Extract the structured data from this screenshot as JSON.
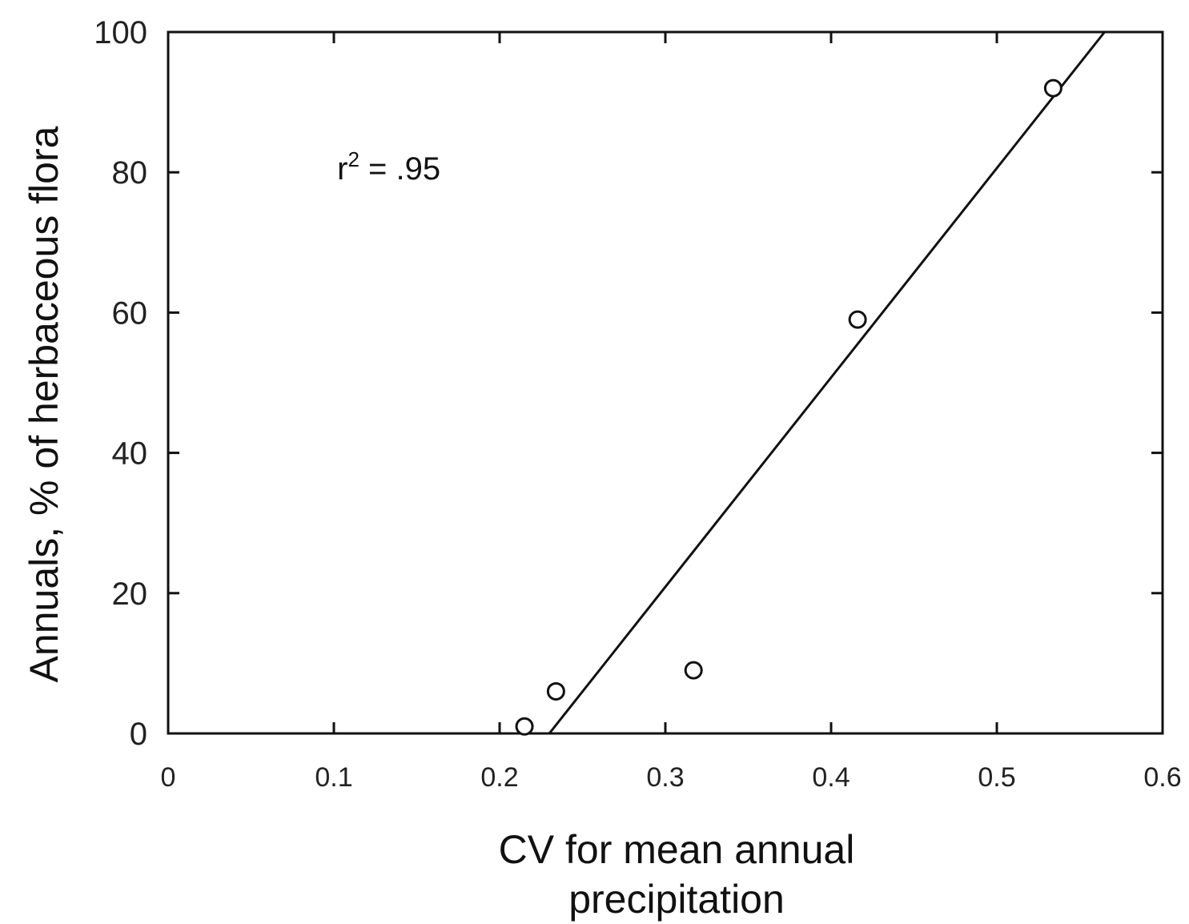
{
  "chart_data": {
    "type": "scatter",
    "title": "",
    "xlabel": "CV for mean annual precipitation",
    "xlabel_lines": [
      "CV for mean annual",
      "precipitation"
    ],
    "ylabel": "Annuals, % of herbaceous flora",
    "xlim": [
      0,
      0.6
    ],
    "ylim": [
      0,
      100
    ],
    "x_ticks": [
      0,
      0.1,
      0.2,
      0.3,
      0.4,
      0.5,
      0.6
    ],
    "x_tick_labels": [
      "0",
      "0.1",
      "0.2",
      "0.3",
      "0.4",
      "0.5",
      "0.6"
    ],
    "y_ticks": [
      0,
      20,
      40,
      60,
      80,
      100
    ],
    "y_tick_labels": [
      "0",
      "20",
      "40",
      "60",
      "80",
      "100"
    ],
    "grid": false,
    "points": [
      {
        "x": 0.215,
        "y": 1
      },
      {
        "x": 0.234,
        "y": 6
      },
      {
        "x": 0.317,
        "y": 9
      },
      {
        "x": 0.416,
        "y": 59
      },
      {
        "x": 0.534,
        "y": 92
      }
    ],
    "fit_line": {
      "from": {
        "x": 0.23,
        "y": 0
      },
      "to": {
        "x": 0.565,
        "y": 100
      }
    },
    "annotation": {
      "prefix": "r",
      "superscript": "2",
      "suffix": " = .95",
      "x": 0.102,
      "y": 79
    },
    "colors": {
      "ink": "#111111",
      "marker_fill": "#ffffff"
    }
  }
}
